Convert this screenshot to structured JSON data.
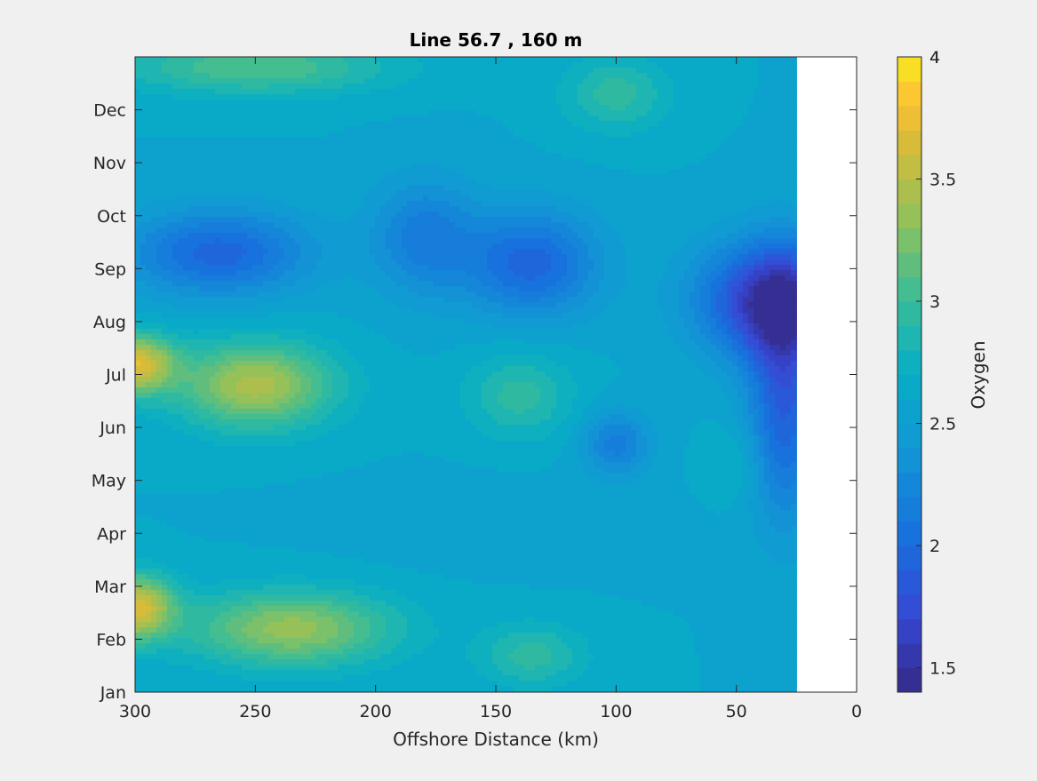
{
  "chart_data": {
    "type": "heatmap",
    "title": "Line 56.7 , 160 m",
    "xlabel": "Offshore Distance (km)",
    "ylabel": "",
    "colorbar_label": "Oxygen",
    "x_ticks": [
      "300",
      "250",
      "200",
      "150",
      "100",
      "50",
      "0"
    ],
    "x_tick_values": [
      300,
      250,
      200,
      150,
      100,
      50,
      0
    ],
    "xlim": [
      300,
      0
    ],
    "y_ticks": [
      "Jan",
      "Feb",
      "Mar",
      "Apr",
      "May",
      "Jun",
      "Jul",
      "Aug",
      "Sep",
      "Oct",
      "Nov",
      "Dec"
    ],
    "y_tick_values": [
      1,
      2,
      3,
      4,
      5,
      6,
      7,
      8,
      9,
      10,
      11,
      12
    ],
    "ylim": [
      1,
      13
    ],
    "colorbar_ticks": [
      "1.5",
      "2",
      "2.5",
      "3",
      "3.5",
      "4"
    ],
    "colorbar_tick_values": [
      1.5,
      2,
      2.5,
      3,
      3.5,
      4
    ],
    "clim": [
      1.4,
      4.0
    ],
    "colormap": "parula",
    "contour_levels": 26,
    "data_xmin": 25,
    "grid": false,
    "features": [
      {
        "x": 300,
        "y": 7.2,
        "value": 3.65,
        "sx": 16,
        "sy": 0.55
      },
      {
        "x": 300,
        "y": 2.6,
        "value": 3.65,
        "sx": 16,
        "sy": 0.6
      },
      {
        "x": 250,
        "y": 6.8,
        "value": 3.45,
        "sx": 32,
        "sy": 0.8
      },
      {
        "x": 235,
        "y": 2.2,
        "value": 3.35,
        "sx": 42,
        "sy": 0.7
      },
      {
        "x": 250,
        "y": 12.8,
        "value": 3.1,
        "sx": 55,
        "sy": 0.5
      },
      {
        "x": 265,
        "y": 9.3,
        "value": 1.95,
        "sx": 38,
        "sy": 0.8
      },
      {
        "x": 180,
        "y": 9.6,
        "value": 2.15,
        "sx": 22,
        "sy": 1.1
      },
      {
        "x": 135,
        "y": 9.1,
        "value": 1.95,
        "sx": 28,
        "sy": 1.0
      },
      {
        "x": 140,
        "y": 6.6,
        "value": 2.95,
        "sx": 22,
        "sy": 0.8
      },
      {
        "x": 135,
        "y": 1.7,
        "value": 2.95,
        "sx": 22,
        "sy": 0.6
      },
      {
        "x": 100,
        "y": 12.3,
        "value": 2.95,
        "sx": 22,
        "sy": 0.7
      },
      {
        "x": 100,
        "y": 5.7,
        "value": 2.15,
        "sx": 14,
        "sy": 0.6
      },
      {
        "x": 35,
        "y": 8.4,
        "value": 1.55,
        "sx": 30,
        "sy": 1.1
      },
      {
        "x": 30,
        "y": 6.5,
        "value": 1.9,
        "sx": 15,
        "sy": 2.2
      },
      {
        "x": 50,
        "y": 5.3,
        "value": 2.75,
        "sx": 12,
        "sy": 0.7
      },
      {
        "x": 150,
        "y": 4.2,
        "value": 2.5,
        "sx": 60,
        "sy": 0.7
      }
    ],
    "background_value": 2.6
  }
}
